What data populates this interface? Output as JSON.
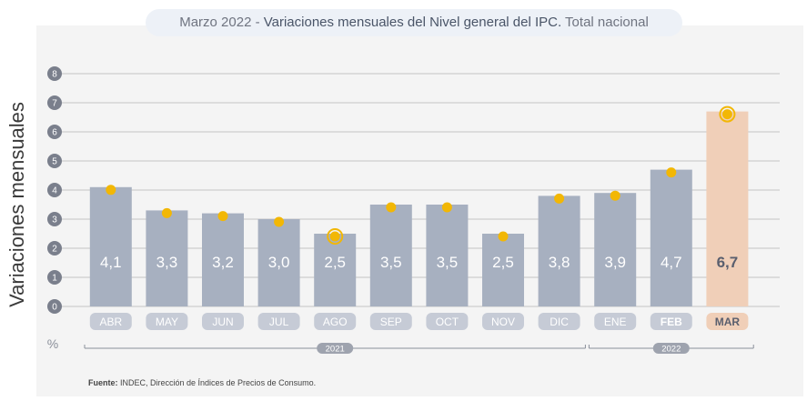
{
  "title": {
    "prefix": "Marzo 2022 - ",
    "main": "Variaciones mensuales del Nivel general del IPC.",
    "suffix": " Total nacional"
  },
  "footer": {
    "label": "Fuente:",
    "text": " INDEC, Dirección de Índices de Precios de Consumo."
  },
  "colors": {
    "bar": "#a7b0c0",
    "bar_highlight": "#f0cfb8",
    "dot": "#f2b705",
    "month_pill": "#c6cbd6",
    "grid": "#c4c4c4",
    "tick_circle": "#7a7f8c"
  },
  "chart_data": {
    "type": "bar",
    "title": "Marzo 2022 - Variaciones mensuales del Nivel general del IPC. Total nacional",
    "ylabel": "Variaciones mensuales",
    "yunit": "%",
    "ylim": [
      0,
      8
    ],
    "yticks": [
      0,
      1,
      2,
      3,
      4,
      5,
      6,
      7,
      8
    ],
    "grid": true,
    "categories": [
      "ABR",
      "MAY",
      "JUN",
      "JUL",
      "AGO",
      "SEP",
      "OCT",
      "NOV",
      "DIC",
      "ENE",
      "FEB",
      "MAR"
    ],
    "values": [
      4.1,
      3.3,
      3.2,
      3.0,
      2.5,
      3.5,
      3.5,
      2.5,
      3.8,
      3.9,
      4.7,
      6.7
    ],
    "value_labels": [
      "4,1",
      "3,3",
      "3,2",
      "3,0",
      "2,5",
      "3,5",
      "3,5",
      "2,5",
      "3,8",
      "3,9",
      "4,7",
      "6,7"
    ],
    "highlight_index": 11,
    "ringed_indices": [
      4,
      11
    ],
    "year_groups": [
      {
        "label": "2021",
        "from": 0,
        "to": 8
      },
      {
        "label": "2022",
        "from": 9,
        "to": 11
      }
    ]
  }
}
